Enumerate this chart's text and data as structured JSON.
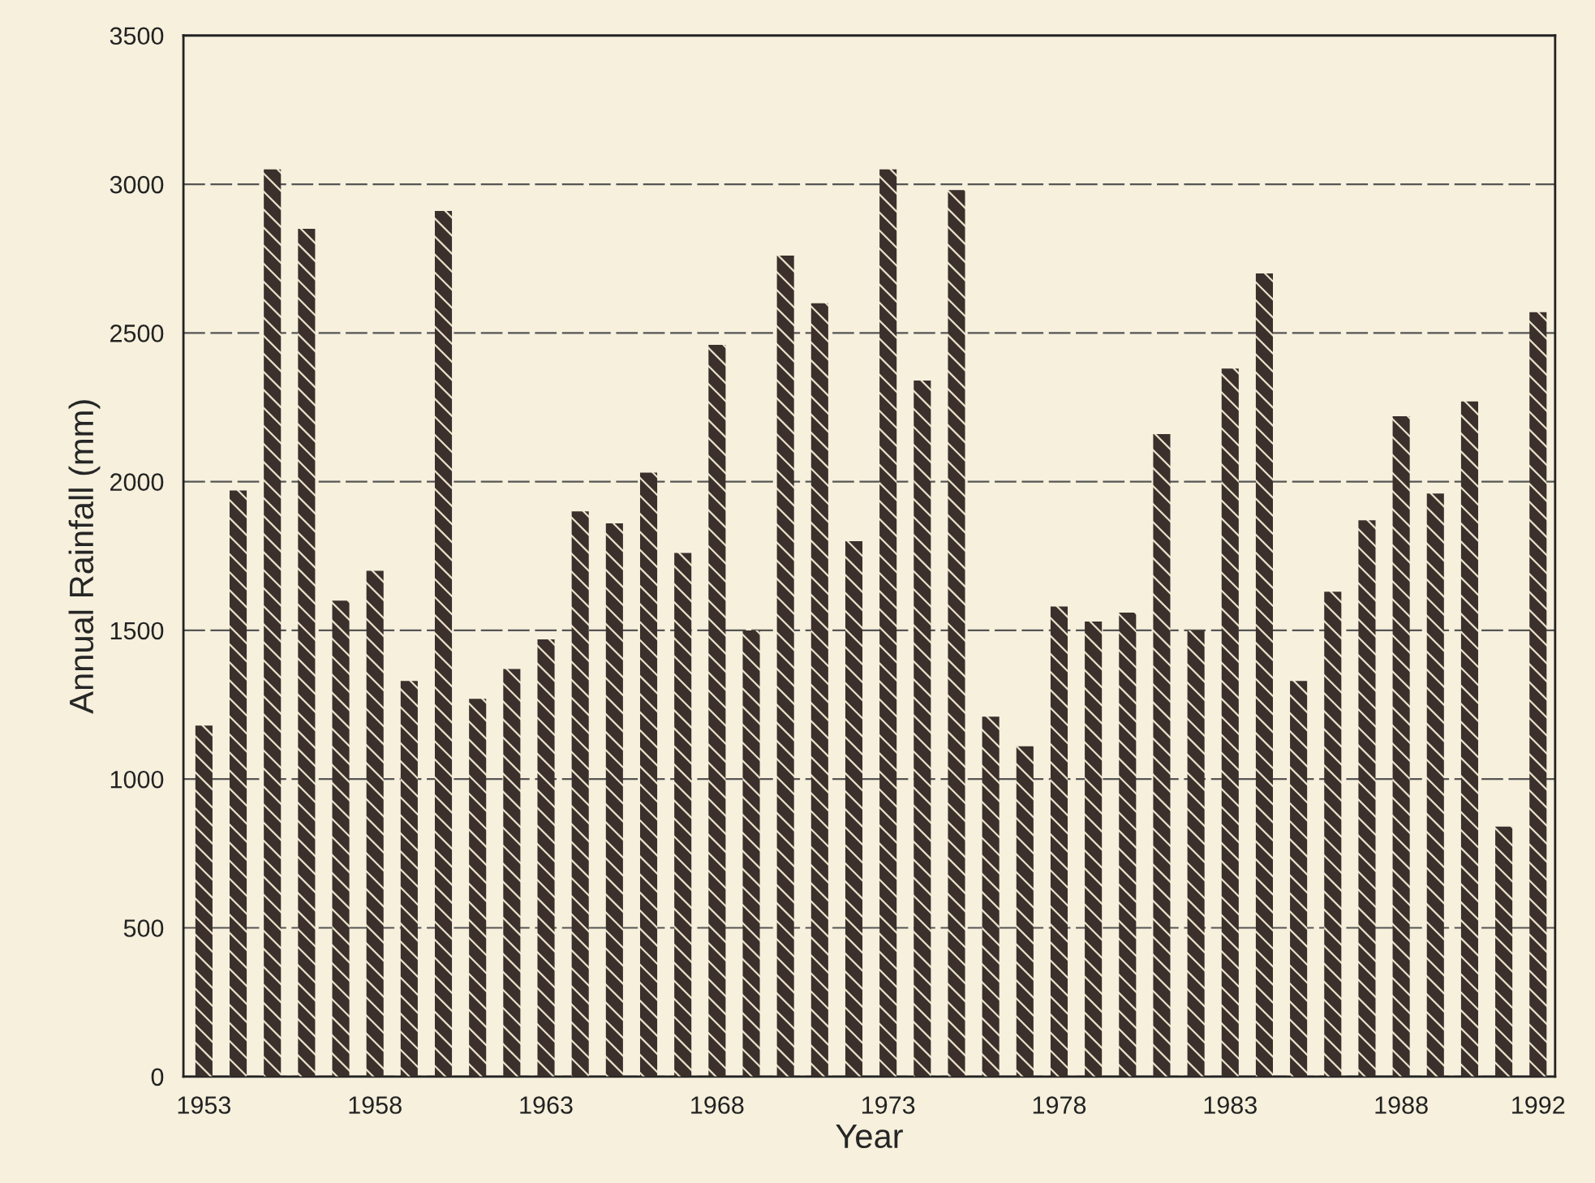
{
  "chart_data": {
    "type": "bar",
    "xlabel": "Year",
    "ylabel": "Annual Rainfall (mm)",
    "categories": [
      "1953",
      null,
      null,
      null,
      null,
      "1958",
      null,
      null,
      null,
      null,
      "1963",
      null,
      null,
      null,
      null,
      "1968",
      null,
      null,
      null,
      null,
      "1973",
      null,
      null,
      null,
      null,
      "1978",
      null,
      null,
      null,
      null,
      "1983",
      null,
      null,
      null,
      null,
      "1988",
      null,
      null,
      null,
      "1992"
    ],
    "values": [
      1180,
      1970,
      3050,
      2850,
      1600,
      1700,
      1330,
      2910,
      1270,
      1370,
      1470,
      1900,
      1860,
      2030,
      1760,
      2460,
      1500,
      2760,
      2600,
      1800,
      3050,
      2340,
      2980,
      1210,
      1110,
      1580,
      1530,
      1560,
      2160,
      1500,
      2380,
      2700,
      1330,
      1630,
      1870,
      2220,
      1960,
      2270,
      840,
      2570
    ],
    "color": "#3b302c",
    "ylim": [
      0,
      3500
    ],
    "yticks": [
      0,
      500,
      1000,
      1500,
      2000,
      2500,
      3000,
      3500
    ],
    "grid": "y",
    "legend": false
  }
}
